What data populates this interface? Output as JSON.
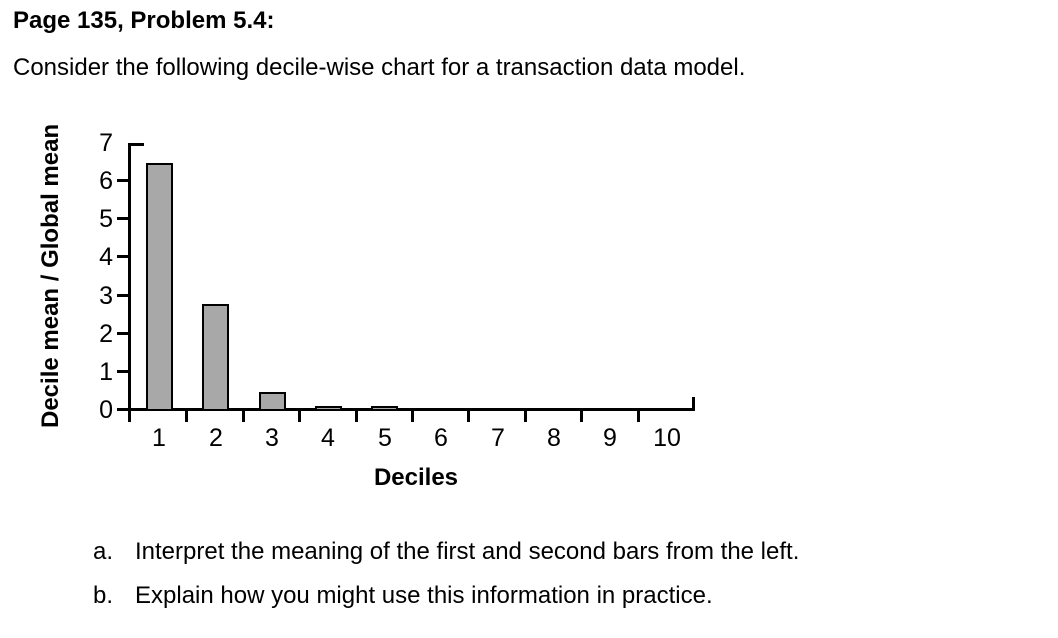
{
  "page": {
    "title": "Page 135, Problem 5.4:",
    "intro": "Consider the following decile-wise chart for a transaction data model.",
    "questions": [
      {
        "marker": "a.",
        "text": "Interpret the meaning of the first and second bars from the left."
      },
      {
        "marker": "b.",
        "text": "Explain how you might use this information in practice."
      }
    ]
  },
  "chart_data": {
    "type": "bar",
    "title": "",
    "xlabel": "Deciles",
    "ylabel": "Decile mean / Global mean",
    "categories": [
      "1",
      "2",
      "3",
      "4",
      "5",
      "6",
      "7",
      "8",
      "9",
      "10"
    ],
    "values": [
      6.5,
      2.8,
      0.5,
      0.1,
      0.1,
      0,
      0,
      0,
      0,
      0
    ],
    "ylim": [
      0,
      7
    ],
    "ytick_step": 1,
    "grid": false,
    "legend": "none",
    "colors": {
      "bar_fill": "#a8a8a8",
      "bar_border": "#000000",
      "axis": "#000000",
      "text": "#000000"
    }
  }
}
